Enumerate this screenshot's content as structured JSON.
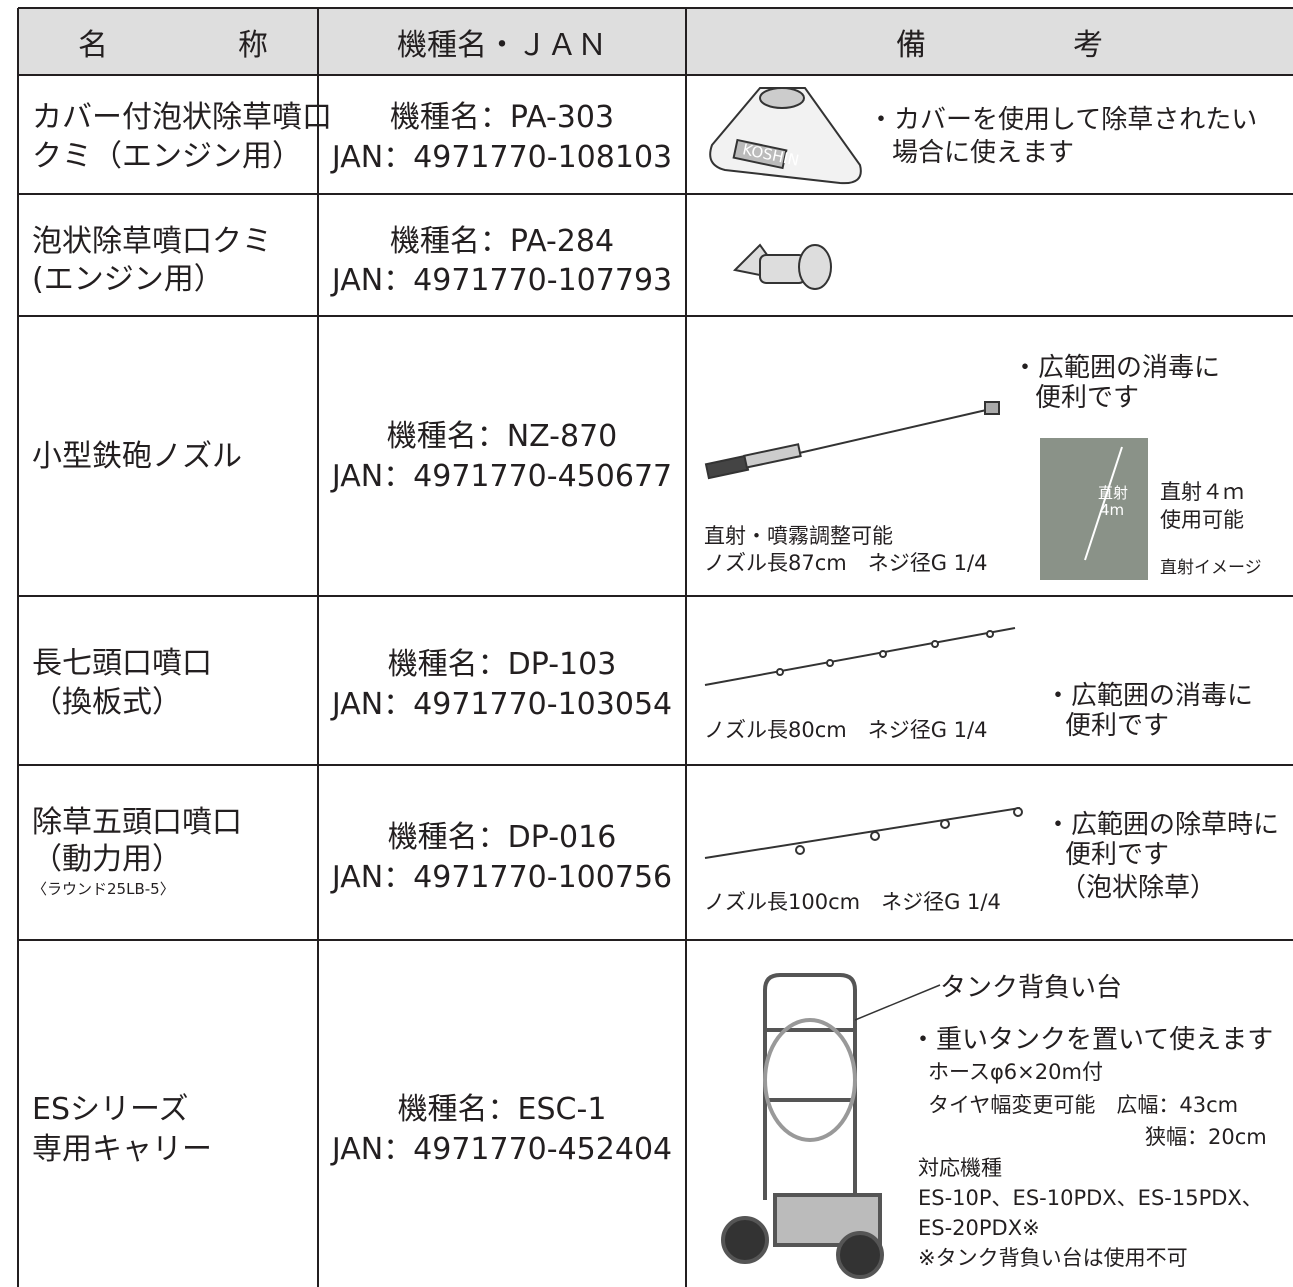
{
  "table": {
    "headers": [
      [
        "名",
        "称"
      ],
      [
        "機種名・ＪＡＮ"
      ],
      [
        "備",
        "考"
      ]
    ],
    "rows": [
      {
        "name": [
          "カバー付泡状除草噴口",
          "クミ（エンジン用）"
        ],
        "model": "機種名：PA-303",
        "jan": "JAN：4971770-108103",
        "image_label": "KOSHIN",
        "notes": [
          "・カバーを使用して除草されたい",
          "場合に使えます"
        ]
      },
      {
        "name": [
          "泡状除草噴口クミ",
          "(エンジン用）"
        ],
        "model": "機種名：PA-284",
        "jan": "JAN：4971770-107793"
      },
      {
        "name": [
          "小型鉄砲ノズル"
        ],
        "model": "機種名：NZ-870",
        "jan": "JAN：4971770-450677",
        "photo_labels": [
          "直射",
          "4m"
        ],
        "notes": [
          "・広範囲の消毒に",
          "便利です",
          "直射４ｍ",
          "使用可能",
          "直射イメージ",
          "直射・噴霧調整可能",
          "ノズル長87cm　ネジ径G 1/4"
        ]
      },
      {
        "name": [
          "長七頭口噴口",
          "（換板式）"
        ],
        "model": "機種名：DP-103",
        "jan": "JAN：4971770-103054",
        "notes": [
          "ノズル長80cm　ネジ径G 1/4",
          "・広範囲の消毒に",
          "便利です"
        ]
      },
      {
        "name": [
          "除草五頭口噴口",
          "（動力用）",
          "〈ラウンド25LB-5〉"
        ],
        "model": "機種名：DP-016",
        "jan": "JAN：4971770-100756",
        "notes": [
          "ノズル長100cm　ネジ径G 1/4",
          "・広範囲の除草時に",
          "便利です",
          "（泡状除草）"
        ]
      },
      {
        "name": [
          "ESシリーズ",
          "専用キャリー"
        ],
        "model": "機種名：ESC-1",
        "jan": "JAN：4971770-452404",
        "notes": [
          "タンク背負い台",
          "・重いタンクを置いて使えます",
          "ホースφ6×20m付",
          "タイヤ幅変更可能　広幅：43cm",
          "狭幅：20cm",
          "対応機種",
          "ES-10P、ES-10PDX、ES-15PDX、",
          "ES-20PDX※",
          "※タンク背負い台は使用不可"
        ]
      }
    ]
  }
}
